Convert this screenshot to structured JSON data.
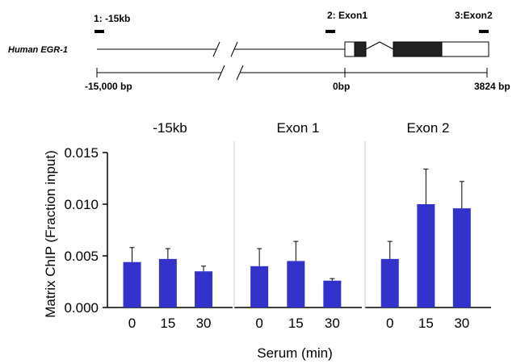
{
  "gene_map": {
    "gene_label": "Human EGR-1",
    "primer_labels": [
      "1: -15kb",
      "2: Exon1",
      "3:Exon2"
    ],
    "scale_labels": [
      "-15,000  bp",
      "0bp",
      "3824 bp"
    ]
  },
  "chart_data": {
    "type": "bar",
    "ylabel": "Matrix ChIP (Fraction input)",
    "xlabel": "Serum (min)",
    "ylim": [
      0,
      0.015
    ],
    "yticks": [
      "0.000",
      "0.005",
      "0.010",
      "0.015"
    ],
    "ytick_values": [
      0,
      0.005,
      0.01,
      0.015
    ],
    "bar_color": "#3333cc",
    "panels": [
      {
        "title": "-15kb",
        "categories": [
          "0",
          "15",
          "30"
        ],
        "values": [
          0.0044,
          0.0047,
          0.0035
        ],
        "errors": [
          0.0014,
          0.001,
          0.0005
        ]
      },
      {
        "title": "Exon 1",
        "categories": [
          "0",
          "15",
          "30"
        ],
        "values": [
          0.004,
          0.0045,
          0.0026
        ],
        "errors": [
          0.0017,
          0.0019,
          0.0002
        ]
      },
      {
        "title": "Exon 2",
        "categories": [
          "0",
          "15",
          "30"
        ],
        "values": [
          0.0047,
          0.01,
          0.0096
        ],
        "errors": [
          0.0017,
          0.0034,
          0.0026
        ]
      }
    ]
  }
}
